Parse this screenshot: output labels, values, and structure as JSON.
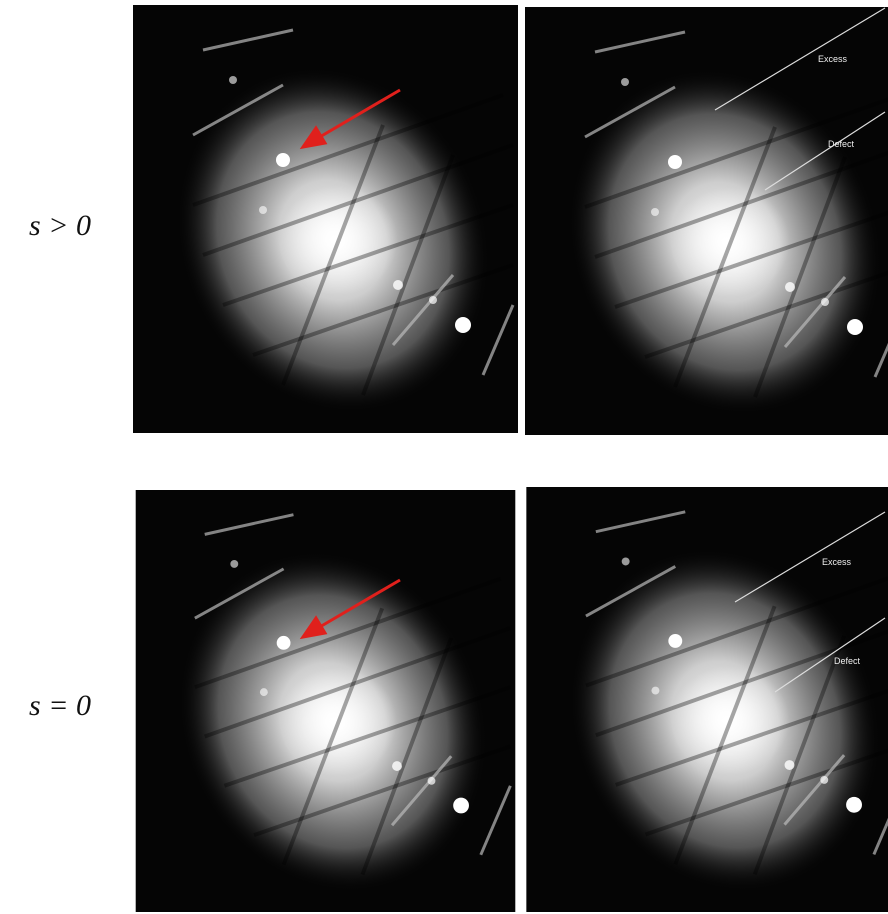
{
  "rows": [
    {
      "label": "s > 0",
      "annotations": [
        "Excess",
        "Defect"
      ]
    },
    {
      "label": "s = 0",
      "annotations": [
        "Excess",
        "Defect"
      ]
    }
  ]
}
